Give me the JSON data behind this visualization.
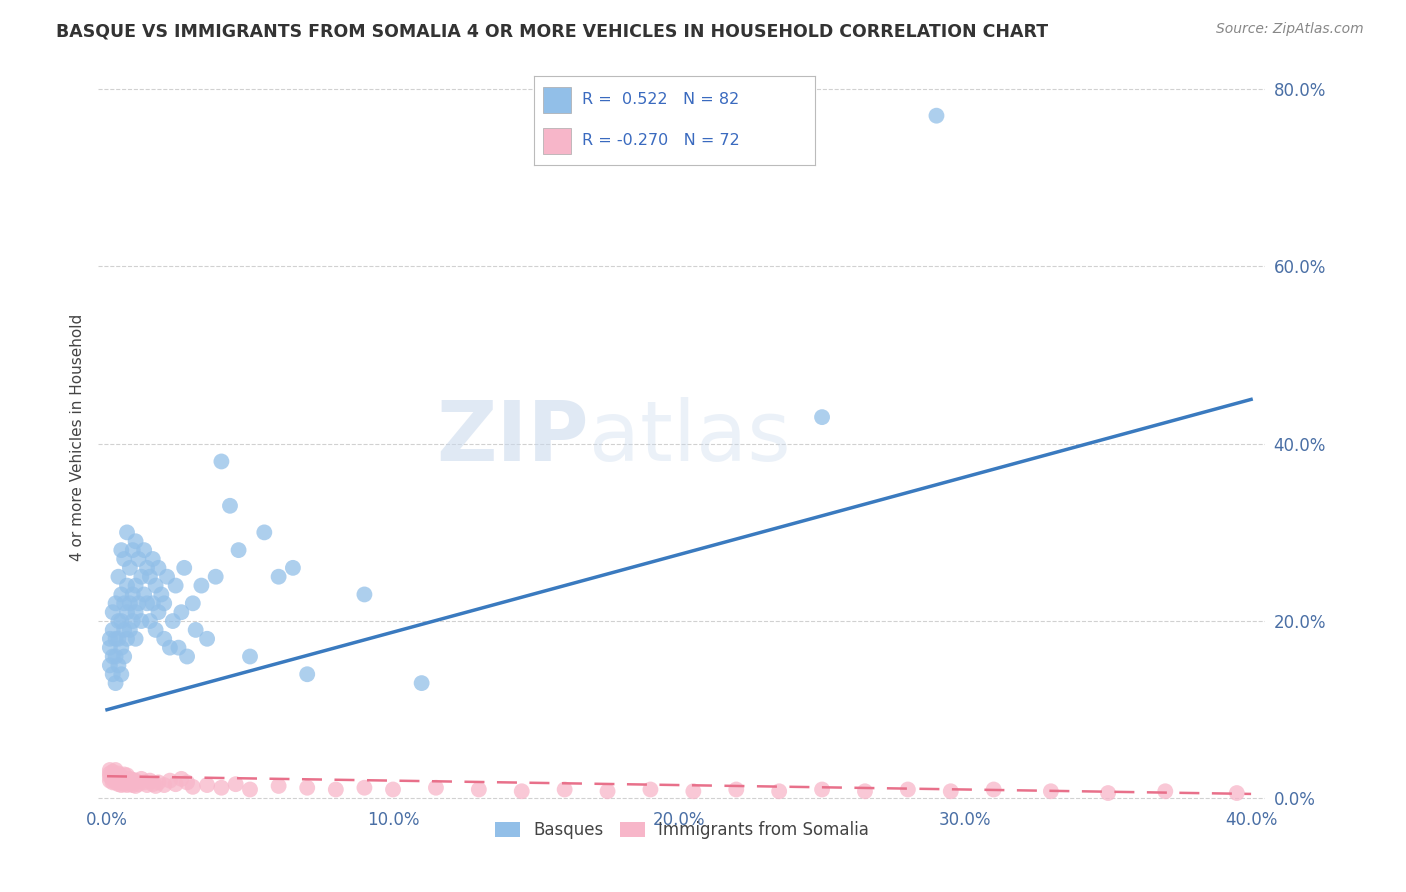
{
  "title": "BASQUE VS IMMIGRANTS FROM SOMALIA 4 OR MORE VEHICLES IN HOUSEHOLD CORRELATION CHART",
  "source": "Source: ZipAtlas.com",
  "ylabel": "4 or more Vehicles in Household",
  "legend_bottom": [
    "Basques",
    "Immigrants from Somalia"
  ],
  "blue_R": 0.522,
  "blue_N": 82,
  "pink_R": -0.27,
  "pink_N": 72,
  "blue_color": "#92bfe8",
  "pink_color": "#f7b6c9",
  "blue_line_color": "#3a7abf",
  "pink_line_color": "#e8708a",
  "watermark_top": "ZIP",
  "watermark_bot": "atlas",
  "xlim": [
    -0.003,
    0.405
  ],
  "ylim": [
    -0.005,
    0.82
  ],
  "x_ticks": [
    0.0,
    0.1,
    0.2,
    0.3,
    0.4
  ],
  "y_ticks": [
    0.0,
    0.2,
    0.4,
    0.6,
    0.8
  ],
  "blue_scatter_x": [
    0.001,
    0.001,
    0.001,
    0.002,
    0.002,
    0.002,
    0.002,
    0.003,
    0.003,
    0.003,
    0.003,
    0.004,
    0.004,
    0.004,
    0.004,
    0.005,
    0.005,
    0.005,
    0.005,
    0.005,
    0.006,
    0.006,
    0.006,
    0.006,
    0.007,
    0.007,
    0.007,
    0.007,
    0.008,
    0.008,
    0.008,
    0.009,
    0.009,
    0.009,
    0.01,
    0.01,
    0.01,
    0.01,
    0.011,
    0.011,
    0.012,
    0.012,
    0.013,
    0.013,
    0.014,
    0.014,
    0.015,
    0.015,
    0.016,
    0.016,
    0.017,
    0.017,
    0.018,
    0.018,
    0.019,
    0.02,
    0.02,
    0.021,
    0.022,
    0.023,
    0.024,
    0.025,
    0.026,
    0.027,
    0.028,
    0.03,
    0.031,
    0.033,
    0.035,
    0.038,
    0.04,
    0.043,
    0.046,
    0.05,
    0.055,
    0.06,
    0.065,
    0.07,
    0.09,
    0.11,
    0.25,
    0.29
  ],
  "blue_scatter_y": [
    0.15,
    0.17,
    0.18,
    0.14,
    0.16,
    0.19,
    0.21,
    0.13,
    0.16,
    0.18,
    0.22,
    0.15,
    0.18,
    0.2,
    0.25,
    0.14,
    0.17,
    0.2,
    0.23,
    0.28,
    0.16,
    0.19,
    0.22,
    0.27,
    0.18,
    0.21,
    0.24,
    0.3,
    0.19,
    0.22,
    0.26,
    0.2,
    0.23,
    0.28,
    0.18,
    0.21,
    0.24,
    0.29,
    0.22,
    0.27,
    0.2,
    0.25,
    0.23,
    0.28,
    0.22,
    0.26,
    0.2,
    0.25,
    0.22,
    0.27,
    0.19,
    0.24,
    0.21,
    0.26,
    0.23,
    0.18,
    0.22,
    0.25,
    0.17,
    0.2,
    0.24,
    0.17,
    0.21,
    0.26,
    0.16,
    0.22,
    0.19,
    0.24,
    0.18,
    0.25,
    0.38,
    0.33,
    0.28,
    0.16,
    0.3,
    0.25,
    0.26,
    0.14,
    0.23,
    0.13,
    0.43,
    0.77
  ],
  "pink_scatter_x": [
    0.001,
    0.001,
    0.001,
    0.001,
    0.002,
    0.002,
    0.002,
    0.002,
    0.003,
    0.003,
    0.003,
    0.003,
    0.004,
    0.004,
    0.004,
    0.004,
    0.005,
    0.005,
    0.005,
    0.006,
    0.006,
    0.006,
    0.007,
    0.007,
    0.007,
    0.008,
    0.008,
    0.009,
    0.009,
    0.01,
    0.01,
    0.011,
    0.012,
    0.013,
    0.014,
    0.015,
    0.016,
    0.017,
    0.018,
    0.02,
    0.022,
    0.024,
    0.026,
    0.028,
    0.03,
    0.035,
    0.04,
    0.045,
    0.05,
    0.06,
    0.07,
    0.08,
    0.09,
    0.1,
    0.115,
    0.13,
    0.145,
    0.16,
    0.175,
    0.19,
    0.205,
    0.22,
    0.235,
    0.25,
    0.265,
    0.28,
    0.295,
    0.31,
    0.33,
    0.35,
    0.37,
    0.395
  ],
  "pink_scatter_y": [
    0.02,
    0.025,
    0.028,
    0.032,
    0.018,
    0.022,
    0.026,
    0.03,
    0.018,
    0.022,
    0.026,
    0.032,
    0.016,
    0.02,
    0.024,
    0.028,
    0.015,
    0.02,
    0.025,
    0.016,
    0.021,
    0.027,
    0.015,
    0.02,
    0.026,
    0.016,
    0.022,
    0.015,
    0.021,
    0.014,
    0.02,
    0.016,
    0.022,
    0.018,
    0.015,
    0.02,
    0.016,
    0.014,
    0.018,
    0.015,
    0.02,
    0.016,
    0.022,
    0.018,
    0.013,
    0.015,
    0.012,
    0.016,
    0.01,
    0.014,
    0.012,
    0.01,
    0.012,
    0.01,
    0.012,
    0.01,
    0.008,
    0.01,
    0.008,
    0.01,
    0.008,
    0.01,
    0.008,
    0.01,
    0.008,
    0.01,
    0.008,
    0.01,
    0.008,
    0.006,
    0.008,
    0.006
  ]
}
